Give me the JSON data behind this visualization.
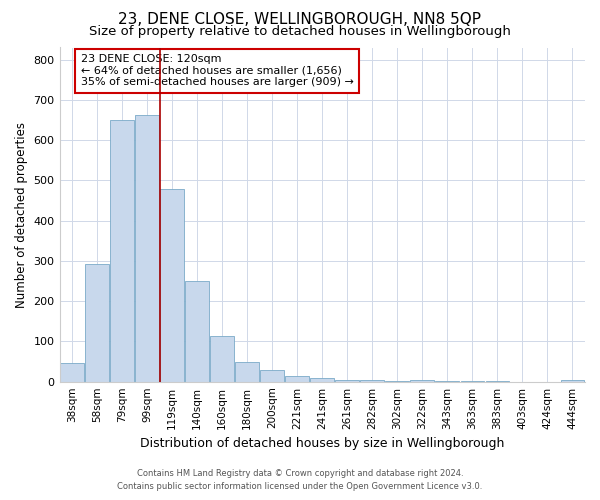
{
  "title": "23, DENE CLOSE, WELLINGBOROUGH, NN8 5QP",
  "subtitle": "Size of property relative to detached houses in Wellingborough",
  "xlabel": "Distribution of detached houses by size in Wellingborough",
  "ylabel": "Number of detached properties",
  "bar_labels": [
    "38sqm",
    "58sqm",
    "79sqm",
    "99sqm",
    "119sqm",
    "140sqm",
    "160sqm",
    "180sqm",
    "200sqm",
    "221sqm",
    "241sqm",
    "261sqm",
    "282sqm",
    "302sqm",
    "322sqm",
    "343sqm",
    "363sqm",
    "383sqm",
    "403sqm",
    "424sqm",
    "444sqm"
  ],
  "bar_values": [
    47,
    293,
    651,
    662,
    478,
    250,
    113,
    48,
    28,
    15,
    10,
    3,
    4,
    2,
    5,
    1,
    2,
    1,
    0,
    0,
    5
  ],
  "bar_color": "#c8d8ec",
  "bar_edge_color": "#7aaac8",
  "vline_x_index": 3,
  "vline_color": "#aa0000",
  "ylim": [
    0,
    830
  ],
  "yticks": [
    0,
    100,
    200,
    300,
    400,
    500,
    600,
    700,
    800
  ],
  "annotation_box_text": "23 DENE CLOSE: 120sqm\n← 64% of detached houses are smaller (1,656)\n35% of semi-detached houses are larger (909) →",
  "annotation_box_color": "#ffffff",
  "annotation_box_edgecolor": "#cc0000",
  "footer_line1": "Contains HM Land Registry data © Crown copyright and database right 2024.",
  "footer_line2": "Contains public sector information licensed under the Open Government Licence v3.0.",
  "background_color": "#ffffff",
  "grid_color": "#d0d8e8",
  "title_fontsize": 11,
  "subtitle_fontsize": 9.5,
  "xlabel_fontsize": 9,
  "ylabel_fontsize": 8.5
}
